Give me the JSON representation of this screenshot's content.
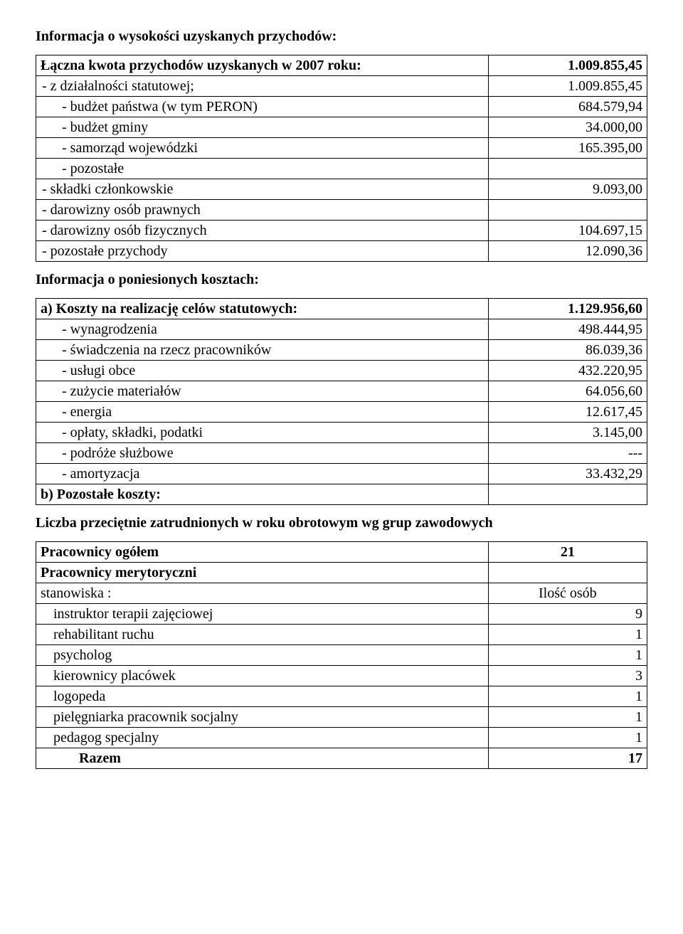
{
  "headings": {
    "income_info": "Informacja o wysokości uzyskanych przychodów:",
    "cost_info": "Informacja o poniesionych kosztach:",
    "employees_info": "Liczba przeciętnie zatrudnionych w roku obrotowym wg grup zawodowych"
  },
  "income": {
    "rows": [
      {
        "label": "Łączna kwota przychodów uzyskanych w 2007 roku:",
        "value": "1.009.855,45",
        "bold": true,
        "cls": "indent0"
      },
      {
        "label": "- z działalności statutowej;",
        "value": "1.009.855,45",
        "cls": "sub"
      },
      {
        "label": "- budżet państwa (w tym PERON)",
        "value": "684.579,94",
        "cls": "indent2"
      },
      {
        "label": "- budżet gminy",
        "value": "34.000,00",
        "cls": "indent2"
      },
      {
        "label": "- samorząd wojewódzki",
        "value": "165.395,00",
        "cls": "indent2"
      },
      {
        "label": "- pozostałe",
        "value": "",
        "cls": "indent2"
      },
      {
        "label": "- składki członkowskie",
        "value": "9.093,00",
        "cls": "sub"
      },
      {
        "label": "- darowizny osób prawnych",
        "value": "",
        "cls": "sub"
      },
      {
        "label": "- darowizny osób fizycznych",
        "value": "104.697,15",
        "cls": "sub"
      },
      {
        "label": "- pozostałe przychody",
        "value": "12.090,36",
        "cls": "sub"
      }
    ]
  },
  "costs": {
    "rows": [
      {
        "label": "a) Koszty na realizację celów statutowych:",
        "value": "1.129.956,60",
        "bold": true,
        "cls": "indent0"
      },
      {
        "label": "- wynagrodzenia",
        "value": "498.444,95",
        "cls": "indent2"
      },
      {
        "label": "- świadczenia na rzecz pracowników",
        "value": "86.039,36",
        "cls": "indent2"
      },
      {
        "label": "- usługi obce",
        "value": "432.220,95",
        "cls": "indent2"
      },
      {
        "label": "- zużycie materiałów",
        "value": "64.056,60",
        "cls": "indent2"
      },
      {
        "label": "- energia",
        "value": "12.617,45",
        "cls": "indent2"
      },
      {
        "label": "- opłaty, składki, podatki",
        "value": "3.145,00",
        "cls": "indent2"
      },
      {
        "label": "- podróże służbowe",
        "value": "---",
        "cls": "indent2"
      },
      {
        "label": "- amortyzacja",
        "value": "33.432,29",
        "cls": "indent2"
      },
      {
        "label": "b) Pozostałe koszty:",
        "value": "",
        "bold": true,
        "cls": "indent0"
      }
    ]
  },
  "employees": {
    "header_total_label": "Pracownicy ogółem",
    "header_total_value": "21",
    "subheader": "Pracownicy merytoryczni",
    "positions_label": "stanowiska :",
    "count_label": "Ilość osób",
    "rows": [
      {
        "label": "instruktor terapii zajęciowej",
        "value": "9"
      },
      {
        "label": "rehabilitant ruchu",
        "value": "1"
      },
      {
        "label": "psycholog",
        "value": "1"
      },
      {
        "label": "kierownicy placówek",
        "value": "3"
      },
      {
        "label": "logopeda",
        "value": "1"
      },
      {
        "label": "pielęgniarka pracownik socjalny",
        "value": "1"
      },
      {
        "label": "pedagog specjalny",
        "value": "1"
      }
    ],
    "total_label": "Razem",
    "total_value": "17"
  }
}
